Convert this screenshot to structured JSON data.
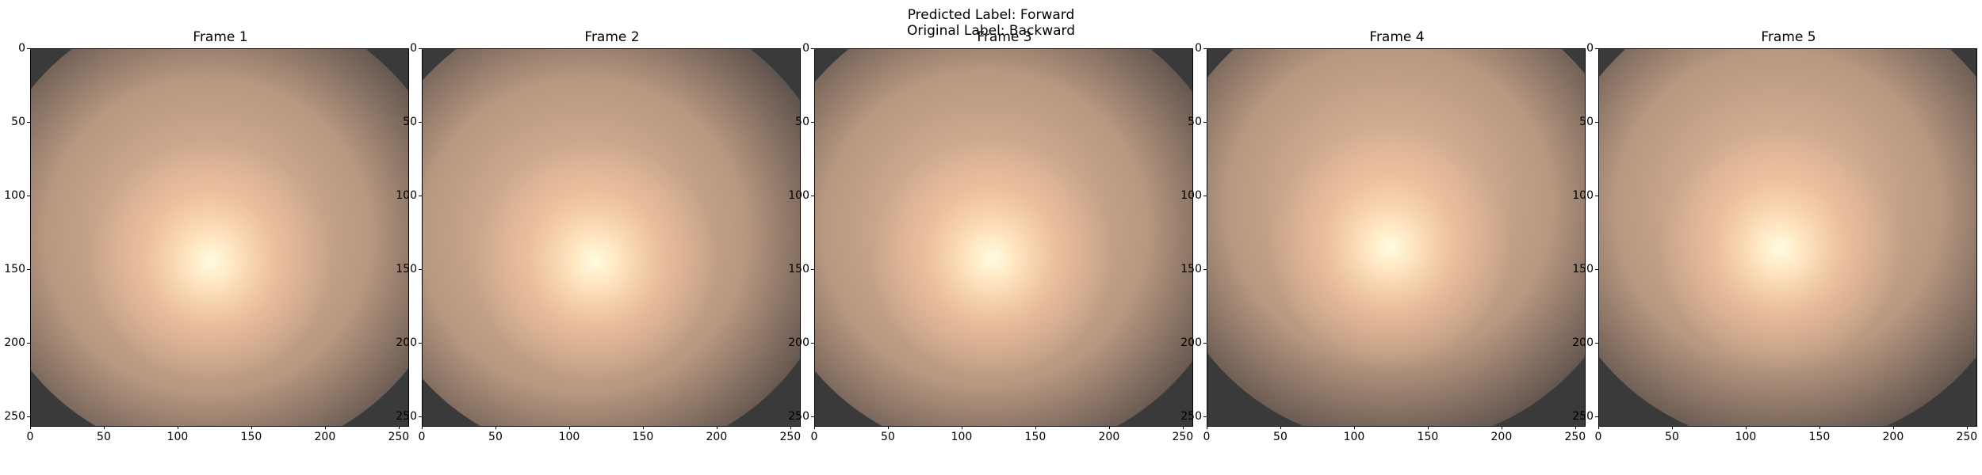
{
  "figure": {
    "predicted_label": "Predicted Label: Forward",
    "original_label": "Original Label: Backward"
  },
  "frames": [
    {
      "title": "Frame 1"
    },
    {
      "title": "Frame 2"
    },
    {
      "title": "Frame 3"
    },
    {
      "title": "Frame 4"
    },
    {
      "title": "Frame 5"
    }
  ],
  "axes": {
    "x_ticks": [
      "0",
      "50",
      "100",
      "150",
      "200",
      "250"
    ],
    "y_ticks": [
      "0",
      "50",
      "100",
      "150",
      "200",
      "250"
    ]
  },
  "colors": {
    "background_dark": "#3a3a3a",
    "glow_center": "#fffbe0",
    "glow_mid": "#f8c8a0",
    "glow_outer": "#8a7060"
  }
}
